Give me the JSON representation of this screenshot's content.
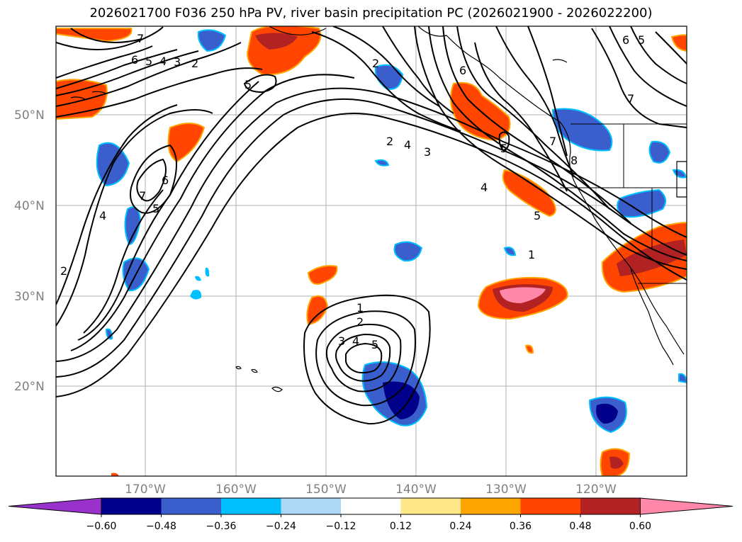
{
  "title": "2026021700 F036 250 hPa PV, river basin precipitation PC (2026021900 - 2026022200)",
  "lat_labels": [
    "50°N",
    "40°N",
    "30°N",
    "20°N"
  ],
  "lon_labels": [
    "170°W",
    "160°W",
    "150°W",
    "140°W",
    "130°W",
    "120°W"
  ],
  "colorbar": {
    "tick_labels": [
      "−0.60",
      "−0.48",
      "−0.36",
      "−0.24",
      "−0.12",
      "0.12",
      "0.24",
      "0.36",
      "0.48",
      "0.60"
    ],
    "colors": [
      "#9932cc",
      "#00008b",
      "#3a5fcd",
      "#00bfff",
      "#add8f5",
      "#ffffff",
      "#ffe88a",
      "#ffa500",
      "#ff4500",
      "#b22222",
      "#ff88aa"
    ]
  },
  "contour_labels": [
    "7",
    "6",
    "5",
    "4",
    "3",
    "2",
    "5",
    "2",
    "6",
    "7",
    "6",
    "5",
    "4",
    "2",
    "3",
    "4",
    "5",
    "1",
    "5",
    "7",
    "8",
    "6",
    "5",
    "4",
    "2",
    "1",
    "2",
    "3",
    "4",
    "5",
    "7"
  ],
  "shading_colors": {
    "dark_blue": "#00008b",
    "blue": "#3a5fcd",
    "light_blue": "#00bfff",
    "orange_red": "#ff4500",
    "dark_red": "#b22222",
    "pink": "#ff88aa",
    "orange": "#ffa500",
    "yellow": "#ffe88a"
  }
}
